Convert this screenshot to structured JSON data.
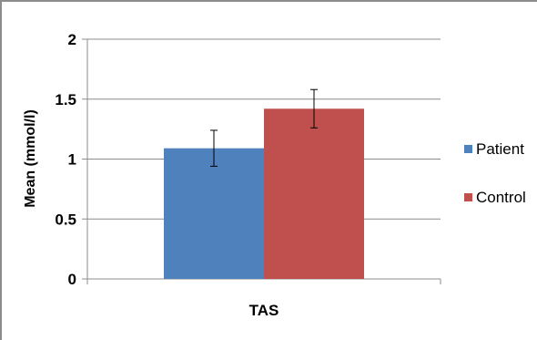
{
  "chart_data": {
    "type": "bar",
    "categories": [
      "TAS"
    ],
    "xlabel": "",
    "ylabel": "Mean (mmol/l)",
    "ylim": [
      0,
      2
    ],
    "yticks": [
      {
        "value": 0,
        "label": "0"
      },
      {
        "value": 0.5,
        "label": "0.5"
      },
      {
        "value": 1,
        "label": "1"
      },
      {
        "value": 1.5,
        "label": "1.5"
      },
      {
        "value": 2,
        "label": "2"
      }
    ],
    "grid": true,
    "legend_position": "right",
    "error_bars": true,
    "series": [
      {
        "name": "Patient",
        "values": [
          1.09
        ],
        "error": [
          0.15
        ],
        "color": "#4F81BD"
      },
      {
        "name": "Control",
        "values": [
          1.42
        ],
        "error": [
          0.16
        ],
        "color": "#C0504D"
      }
    ]
  }
}
